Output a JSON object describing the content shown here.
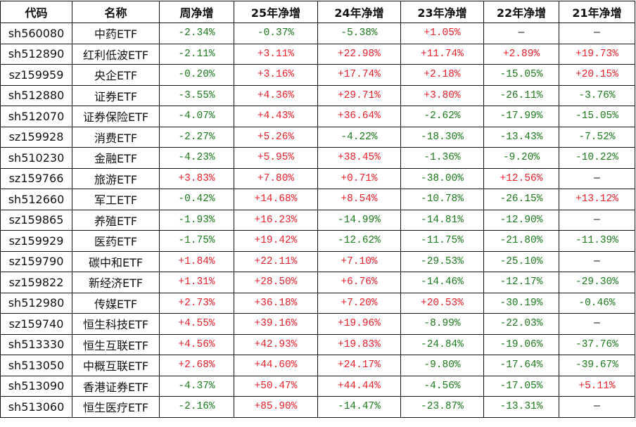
{
  "columns": [
    "代码",
    "名称",
    "周净增",
    "25年净增",
    "24年净增",
    "23年净增",
    "22年净增",
    "21年净增"
  ],
  "colors": {
    "positive": "#e8202a",
    "negative": "#1a7a1a"
  },
  "rows": [
    [
      "sh560080",
      "中药ETF",
      "-2.34%",
      "-0.37%",
      "-5.38%",
      "+1.05%",
      "—",
      "—"
    ],
    [
      "sh512890",
      "红利低波ETF",
      "-2.11%",
      "+3.11%",
      "+22.98%",
      "+11.74%",
      "+2.89%",
      "+19.73%"
    ],
    [
      "sz159959",
      "央企ETF",
      "-0.20%",
      "+3.16%",
      "+17.74%",
      "+2.18%",
      "-15.05%",
      "+20.15%"
    ],
    [
      "sh512880",
      "证券ETF",
      "-3.55%",
      "+4.36%",
      "+29.71%",
      "+3.80%",
      "-26.11%",
      "-3.76%"
    ],
    [
      "sh512070",
      "证券保险ETF",
      "-4.07%",
      "+4.43%",
      "+36.64%",
      "-2.62%",
      "-17.99%",
      "-15.05%"
    ],
    [
      "sz159928",
      "消费ETF",
      "-2.27%",
      "+5.26%",
      "-4.22%",
      "-18.30%",
      "-13.43%",
      "-7.52%"
    ],
    [
      "sh510230",
      "金融ETF",
      "-4.23%",
      "+5.95%",
      "+38.45%",
      "-1.36%",
      "-9.20%",
      "-10.22%"
    ],
    [
      "sz159766",
      "旅游ETF",
      "+3.83%",
      "+7.80%",
      "+0.71%",
      "-38.00%",
      "+12.56%",
      "—"
    ],
    [
      "sh512660",
      "军工ETF",
      "-0.42%",
      "+14.68%",
      "+8.54%",
      "-10.78%",
      "-26.15%",
      "+13.12%"
    ],
    [
      "sz159865",
      "养殖ETF",
      "-1.93%",
      "+16.23%",
      "-14.99%",
      "-14.81%",
      "-12.90%",
      "—"
    ],
    [
      "sz159929",
      "医药ETF",
      "-1.75%",
      "+19.42%",
      "-12.62%",
      "-11.75%",
      "-21.80%",
      "-11.39%"
    ],
    [
      "sz159790",
      "碳中和ETF",
      "+1.84%",
      "+22.11%",
      "+7.10%",
      "-29.53%",
      "-25.10%",
      "—"
    ],
    [
      "sz159822",
      "新经济ETF",
      "+1.31%",
      "+28.50%",
      "+6.76%",
      "-14.46%",
      "-12.17%",
      "-29.30%"
    ],
    [
      "sh512980",
      "传媒ETF",
      "+2.73%",
      "+36.18%",
      "+7.20%",
      "+20.53%",
      "-30.19%",
      "-0.46%"
    ],
    [
      "sz159740",
      "恒生科技ETF",
      "+4.55%",
      "+39.16%",
      "+19.96%",
      "-8.99%",
      "-22.03%",
      "—"
    ],
    [
      "sh513330",
      "恒生互联ETF",
      "+4.56%",
      "+42.93%",
      "+19.83%",
      "-24.84%",
      "-19.06%",
      "-37.76%"
    ],
    [
      "sh513050",
      "中概互联ETF",
      "+2.68%",
      "+44.60%",
      "+24.17%",
      "-9.80%",
      "-17.64%",
      "-39.67%"
    ],
    [
      "sh513090",
      "香港证券ETF",
      "-4.37%",
      "+50.47%",
      "+44.44%",
      "-4.56%",
      "-17.05%",
      "+5.11%"
    ],
    [
      "sh513060",
      "恒生医疗ETF",
      "-2.16%",
      "+85.90%",
      "-14.47%",
      "-23.87%",
      "-13.31%",
      "—"
    ]
  ]
}
